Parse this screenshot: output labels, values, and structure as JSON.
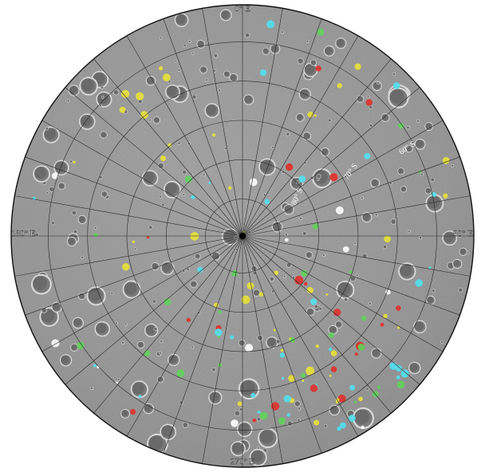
{
  "map": {
    "projection": "polar stereographic, south pole",
    "colors": {
      "terrain": "#8e8e8e",
      "grid": "#2a2a2a",
      "border": "#111111",
      "label": "#ffffff"
    },
    "longitude_labels": {
      "top": "0° E",
      "left": "180° E",
      "right": "90° E",
      "bottom": "270° E"
    },
    "latitude_labels": {
      "lat60": "60° S",
      "lat70": "70° S",
      "lat80": "80° S"
    },
    "feature_colors": {
      "red": "#e0302a",
      "yellow": "#e8e23a",
      "green": "#5fd35a",
      "cyan": "#52e0ee",
      "white": "#ffffff"
    }
  }
}
